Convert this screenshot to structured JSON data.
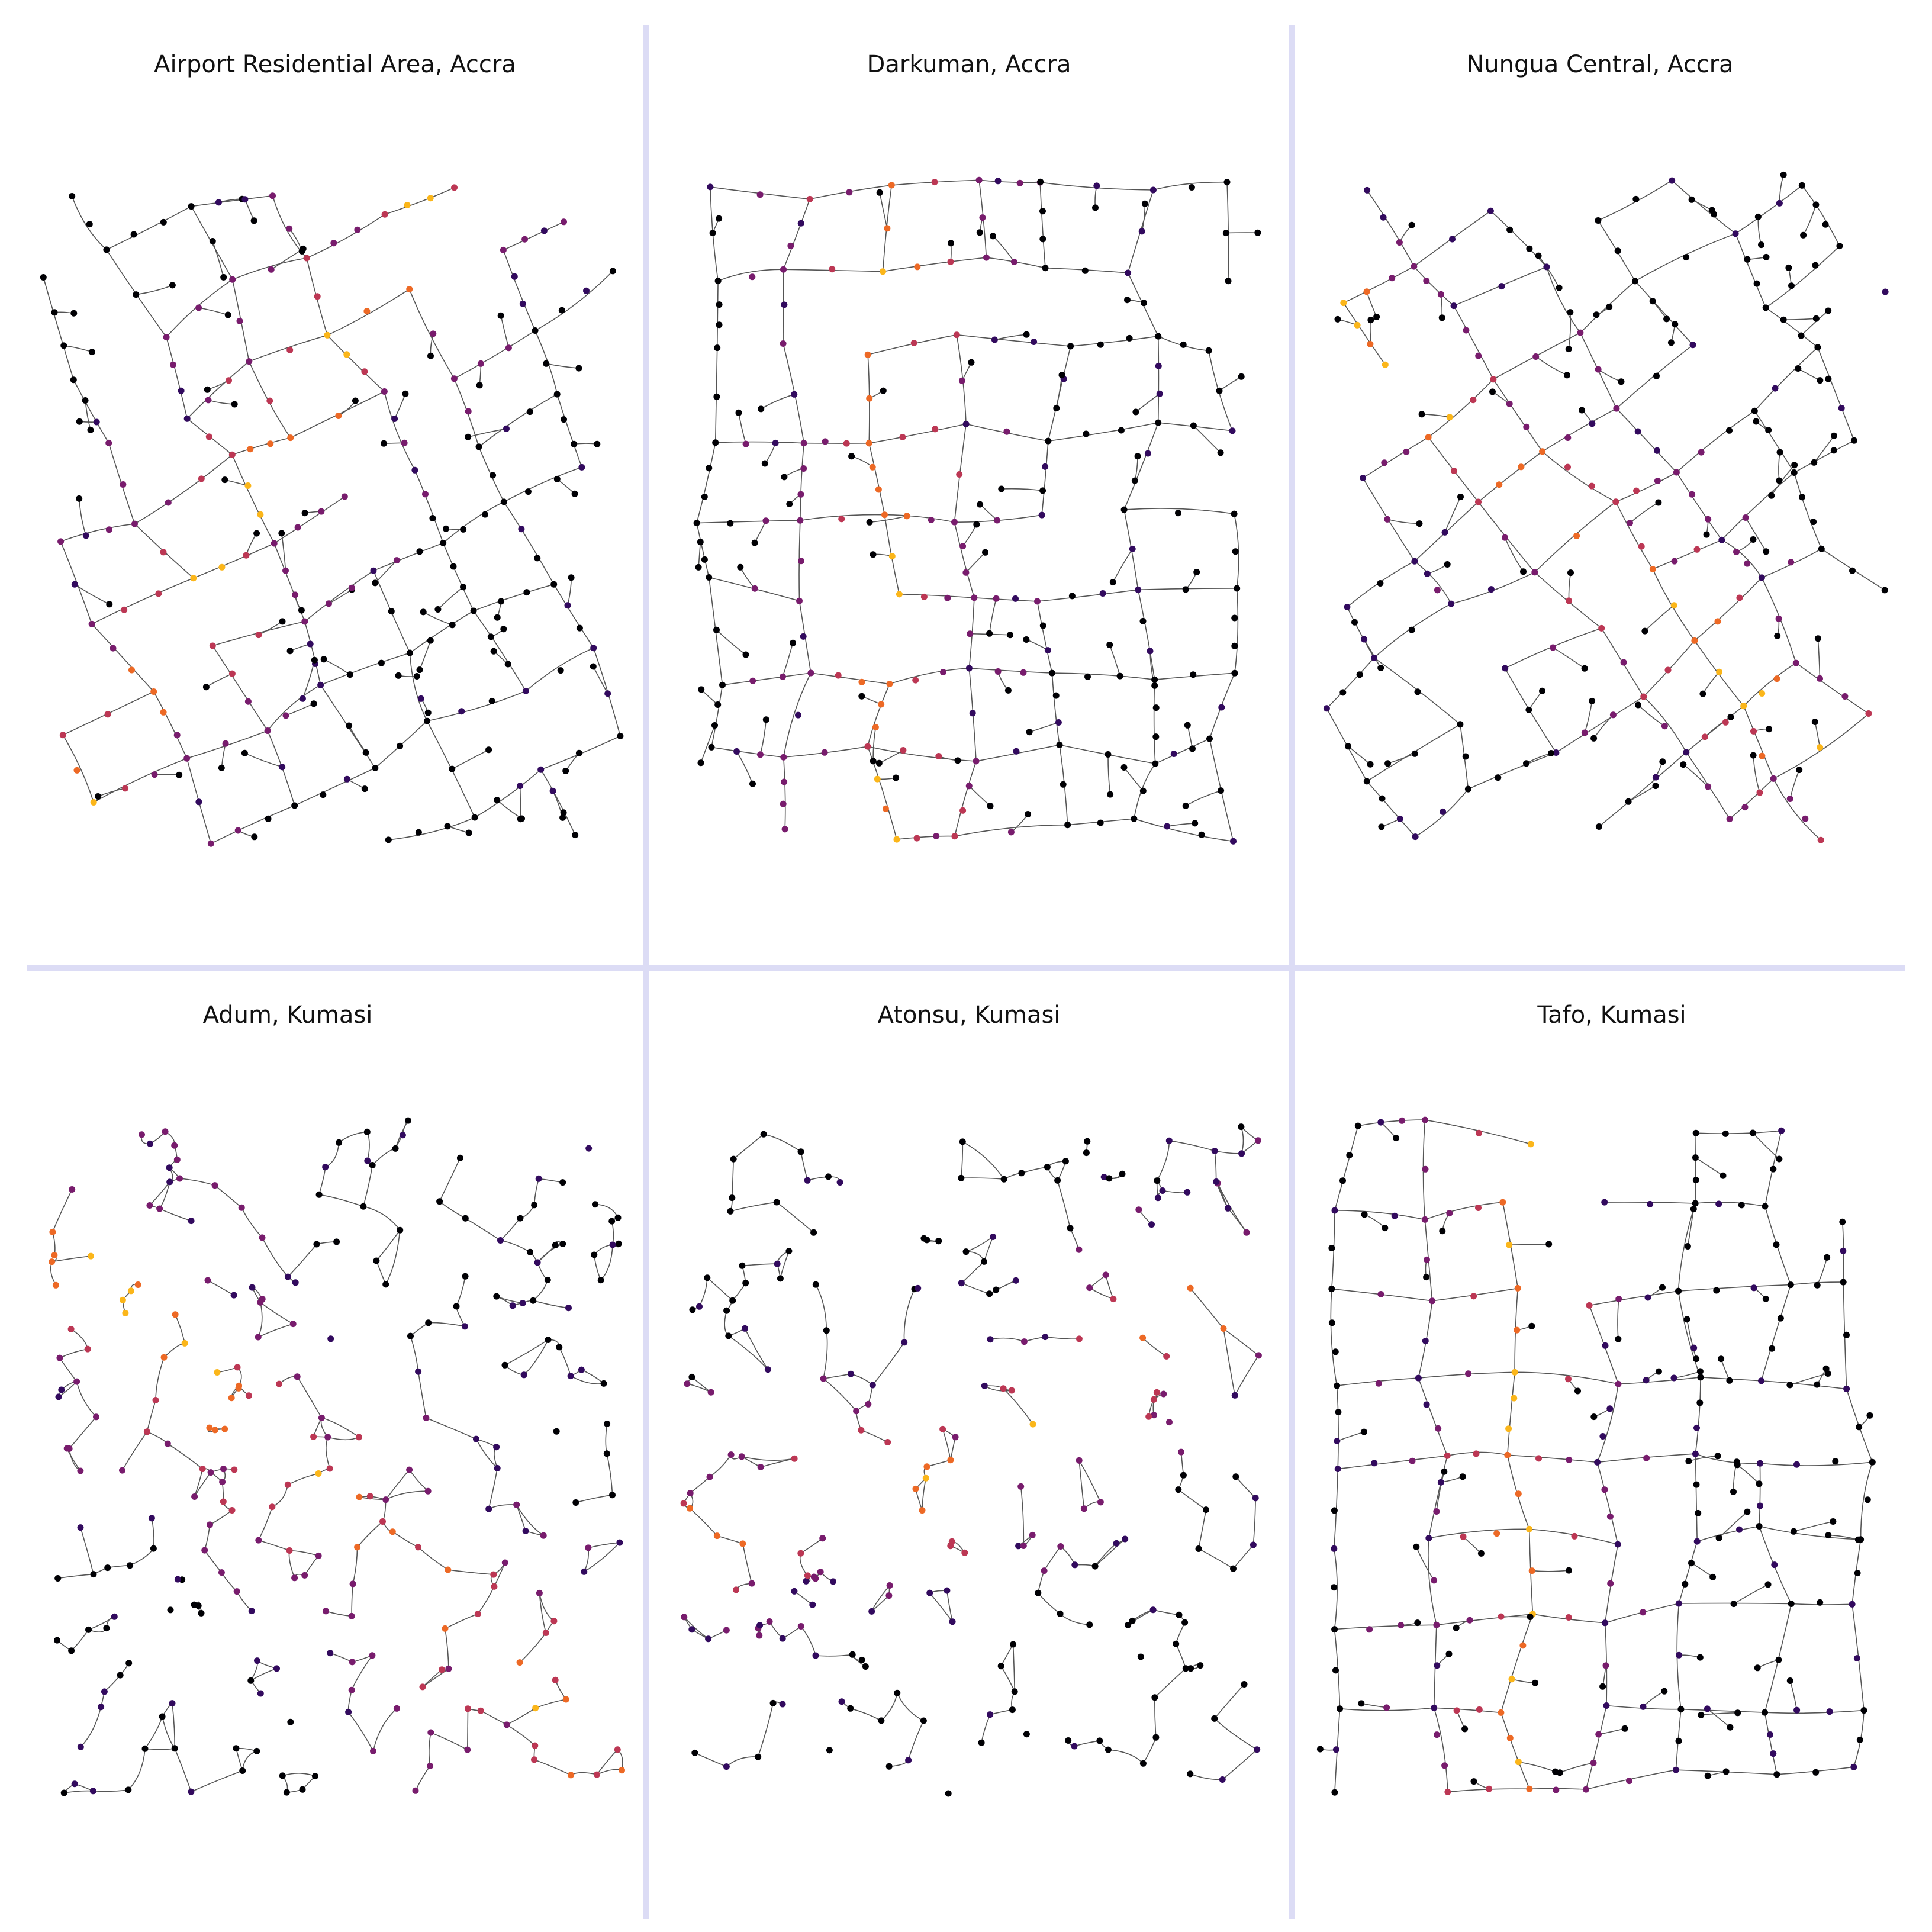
{
  "figure": {
    "divider_color": "#dcdcf5",
    "edge_color": "#555555",
    "node_colormap": "inferno",
    "node_colors": [
      "#000004",
      "#320a5e",
      "#781c6d",
      "#bc3754",
      "#ed6925",
      "#fbb61a",
      "#fcffa4"
    ]
  },
  "panels": [
    {
      "title": "Airport Residential Area, Accra",
      "seed": 11,
      "style": "curvy-grid",
      "nodes": 200,
      "spine": "diagonal"
    },
    {
      "title": "Darkuman, Accra",
      "seed": 23,
      "style": "grid",
      "nodes": 230,
      "spine": "vertical"
    },
    {
      "title": "Nungua Central, Accra",
      "seed": 37,
      "style": "diagonal-grid",
      "nodes": 240,
      "spine": "diagonal-down"
    },
    {
      "title": "Adum, Kumasi",
      "seed": 41,
      "style": "organic",
      "nodes": 250,
      "spine": "diagonal-down"
    },
    {
      "title": "Atonsu, Kumasi",
      "seed": 53,
      "style": "organic",
      "nodes": 220,
      "spine": "horizontal-curve"
    },
    {
      "title": "Tafo, Kumasi",
      "seed": 67,
      "style": "grid",
      "nodes": 260,
      "spine": "vertical"
    }
  ]
}
